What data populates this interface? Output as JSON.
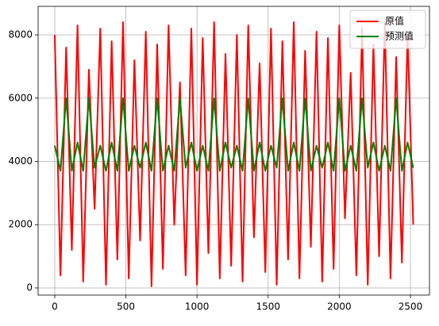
{
  "chart_data": {
    "type": "line",
    "x": [
      0,
      40,
      80,
      120,
      160,
      200,
      240,
      280,
      320,
      360,
      400,
      440,
      480,
      520,
      560,
      600,
      640,
      680,
      720,
      760,
      800,
      840,
      880,
      920,
      960,
      1000,
      1040,
      1080,
      1120,
      1160,
      1200,
      1240,
      1280,
      1320,
      1360,
      1400,
      1440,
      1480,
      1520,
      1560,
      1600,
      1640,
      1680,
      1720,
      1760,
      1800,
      1840,
      1880,
      1920,
      1960,
      2000,
      2040,
      2080,
      2120,
      2160,
      2200,
      2240,
      2280,
      2320,
      2360,
      2400,
      2440,
      2480,
      2520
    ],
    "series": [
      {
        "name": "原值",
        "color": "#ff0000",
        "values": [
          8000,
          400,
          7600,
          1200,
          8300,
          200,
          6900,
          2500,
          8200,
          100,
          7800,
          900,
          8400,
          300,
          7200,
          1500,
          8100,
          50,
          7700,
          600,
          8300,
          2000,
          6500,
          400,
          8200,
          100,
          7900,
          1100,
          8400,
          300,
          7400,
          700,
          8000,
          200,
          8300,
          1600,
          7100,
          500,
          8200,
          100,
          7800,
          900,
          8400,
          300,
          7500,
          1300,
          8100,
          200,
          7900,
          600,
          8300,
          2200,
          6800,
          400,
          8200,
          100,
          7700,
          1000,
          8400,
          300,
          7300,
          800,
          8000,
          2000
        ]
      },
      {
        "name": "预测值",
        "color": "#008000",
        "values": [
          4500,
          3700,
          6000,
          3700,
          4600,
          3700,
          6000,
          3800,
          4500,
          3700,
          4600,
          3700,
          6000,
          3700,
          4500,
          3800,
          4600,
          3700,
          6000,
          3700,
          4500,
          3700,
          6000,
          3800,
          4600,
          3700,
          4500,
          3700,
          6000,
          3700,
          4600,
          3800,
          4500,
          3700,
          6000,
          3700,
          4600,
          3700,
          4500,
          3800,
          6000,
          3700,
          4600,
          3700,
          6000,
          3700,
          4500,
          3800,
          4600,
          3700,
          6000,
          3700,
          4500,
          3700,
          6000,
          3800,
          4600,
          3700,
          4500,
          3700,
          6000,
          3700,
          4600,
          3800
        ]
      }
    ],
    "xlim": [
      -117,
      2634
    ],
    "ylim": [
      -226,
      8903
    ],
    "xticks": [
      0,
      500,
      1000,
      1500,
      2000,
      2500
    ],
    "yticks": [
      0,
      2000,
      4000,
      6000,
      8000
    ],
    "grid": true,
    "legend": "upper right"
  }
}
